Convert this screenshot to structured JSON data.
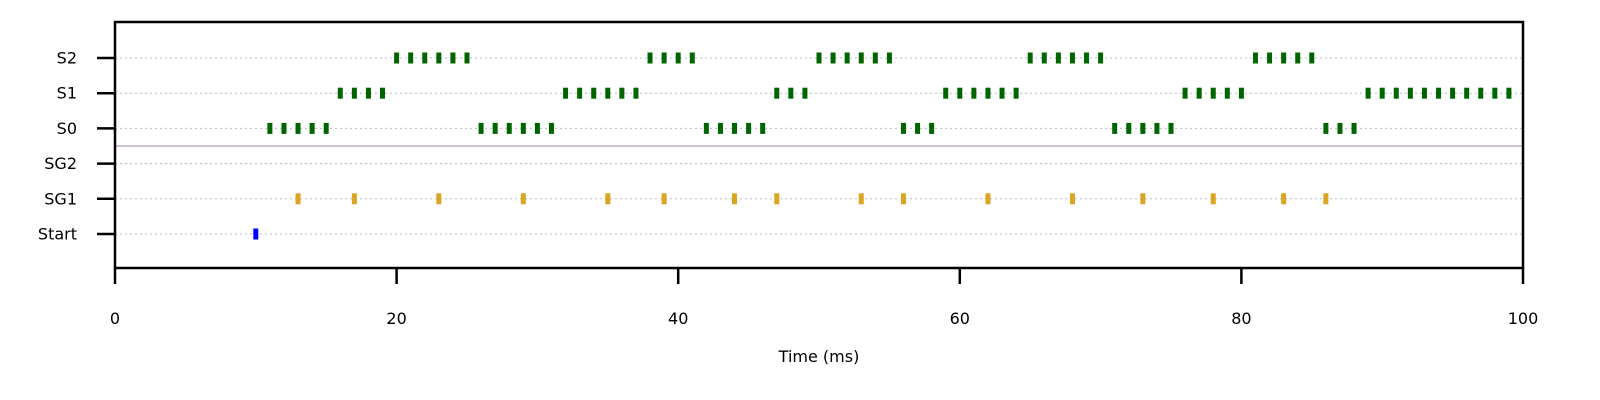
{
  "chart_data": {
    "type": "scatter",
    "title": "",
    "xlabel": "Time (ms)",
    "ylabel": "",
    "xlim": [
      0,
      100
    ],
    "x_ticks": [
      0,
      20,
      40,
      60,
      80,
      100
    ],
    "categories": [
      "S2",
      "S1",
      "S0",
      "SG2",
      "SG1",
      "Start"
    ],
    "grid": true,
    "legend": "none",
    "separator_between": [
      "S0",
      "SG2"
    ],
    "series": [
      {
        "row": "S2",
        "color": "#006400",
        "x": [
          20,
          21,
          22,
          23,
          24,
          25,
          38,
          39,
          40,
          41,
          50,
          51,
          52,
          53,
          54,
          55,
          65,
          66,
          67,
          68,
          69,
          70,
          81,
          82,
          83,
          84,
          85
        ]
      },
      {
        "row": "S1",
        "color": "#006400",
        "x": [
          16,
          17,
          18,
          19,
          32,
          33,
          34,
          35,
          36,
          37,
          47,
          48,
          49,
          59,
          60,
          61,
          62,
          63,
          64,
          76,
          77,
          78,
          79,
          80,
          89,
          90,
          91,
          92,
          93,
          94,
          95,
          96,
          97,
          98,
          99
        ]
      },
      {
        "row": "S0",
        "color": "#006400",
        "x": [
          11,
          12,
          13,
          14,
          15,
          26,
          27,
          28,
          29,
          30,
          31,
          42,
          43,
          44,
          45,
          46,
          56,
          57,
          58,
          71,
          72,
          73,
          74,
          75,
          86,
          87,
          88
        ]
      },
      {
        "row": "SG2",
        "color": "#006400",
        "x": []
      },
      {
        "row": "SG1",
        "color": "#DAA520",
        "x": [
          13,
          17,
          23,
          29,
          35,
          39,
          44,
          47,
          53,
          56,
          62,
          68,
          73,
          78,
          83,
          86
        ]
      },
      {
        "row": "Start",
        "color": "#0000FF",
        "x": [
          10
        ]
      }
    ]
  }
}
